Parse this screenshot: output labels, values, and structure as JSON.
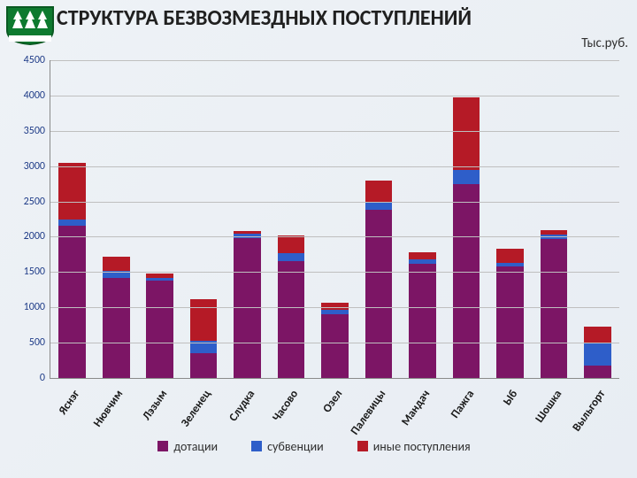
{
  "title": {
    "text": "СТРУКТУРА БЕЗВОЗМЕЗДНЫХ ПОСТУПЛЕНИЙ",
    "fontsize": 24,
    "color": "#202020"
  },
  "units": {
    "text": "Тыс.руб.",
    "fontsize": 15,
    "color": "#303030"
  },
  "emblem": {
    "bg": "#0e7a2f",
    "border": "#0a5a22",
    "tree_fill": "#ffffff"
  },
  "chart": {
    "type": "stacked-bar",
    "y_axis": {
      "min": 0,
      "max": 4500,
      "step": 500,
      "label_color": "#1f3c88",
      "label_fontsize": 12,
      "grid_color": "#bfbfbf"
    },
    "bar_width_ratio": 0.62,
    "categories": [
      "Яснэг",
      "Нювчим",
      "Лэзым",
      "Зеленец",
      "Слудка",
      "Часово",
      "Озел",
      "Палевицы",
      "Мандач",
      "Пажга",
      "Ыб",
      "Шошка",
      "Выльгорт"
    ],
    "category_label": {
      "fontsize": 13,
      "fontweight": "700",
      "color": "#1a1a1a",
      "rotate_deg": -55
    },
    "series": [
      {
        "key": "dot",
        "label": "дотации",
        "color": "#7c1565"
      },
      {
        "key": "sub",
        "label": "субвенции",
        "color": "#2e5ec9"
      },
      {
        "key": "other",
        "label": "иные поступления",
        "color": "#b51a26"
      }
    ],
    "data": [
      {
        "dot": 2150,
        "sub": 100,
        "other": 800
      },
      {
        "dot": 1420,
        "sub": 100,
        "other": 200
      },
      {
        "dot": 1380,
        "sub": 40,
        "other": 60
      },
      {
        "dot": 350,
        "sub": 180,
        "other": 580
      },
      {
        "dot": 1980,
        "sub": 60,
        "other": 40
      },
      {
        "dot": 1650,
        "sub": 120,
        "other": 250
      },
      {
        "dot": 900,
        "sub": 60,
        "other": 100
      },
      {
        "dot": 2380,
        "sub": 100,
        "other": 320
      },
      {
        "dot": 1620,
        "sub": 60,
        "other": 100
      },
      {
        "dot": 2750,
        "sub": 200,
        "other": 1020
      },
      {
        "dot": 1580,
        "sub": 50,
        "other": 200
      },
      {
        "dot": 1970,
        "sub": 60,
        "other": 60
      },
      {
        "dot": 170,
        "sub": 330,
        "other": 230
      }
    ],
    "legend": {
      "fontsize": 14,
      "color": "#303030"
    }
  }
}
